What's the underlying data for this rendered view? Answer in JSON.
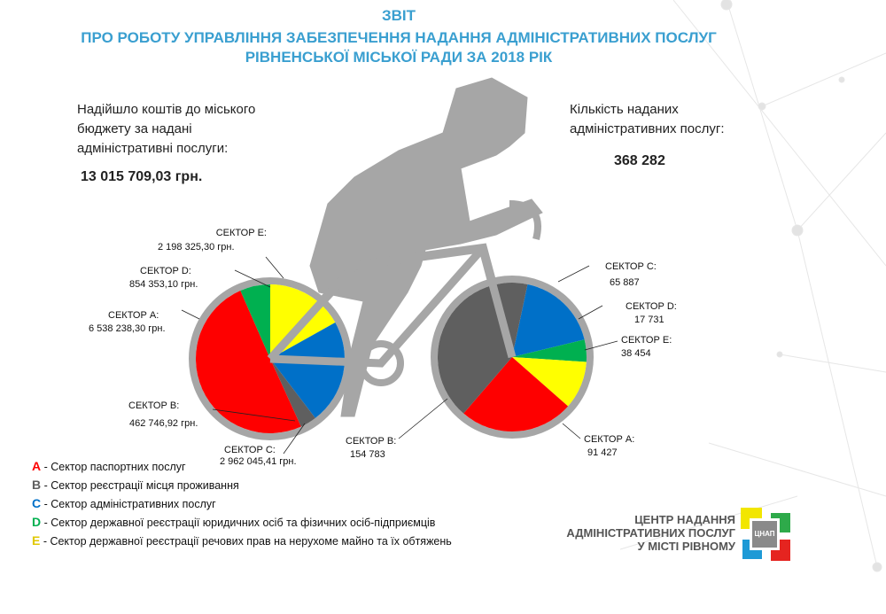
{
  "header": {
    "line1": "ЗВІТ",
    "line2": "ПРО РОБОТУ УПРАВЛІННЯ ЗАБЕЗПЕЧЕННЯ НАДАННЯ АДМІНІСТРАТИВНИХ ПОСЛУГ",
    "line3": "РІВНЕНСЬКОЇ МІСЬКОЇ РАДИ ЗА  2018 РІК"
  },
  "budget": {
    "line1": "Надійшло коштів до міського",
    "line2": "бюджету за надані",
    "line3": "адміністративні послуги:",
    "total": "13 015 709,03 грн."
  },
  "services": {
    "line1": "Кількість наданих",
    "line2": "адміністративних послуг:",
    "total": "368 282"
  },
  "colors": {
    "A": "#fe0000",
    "B": "#5f5f5f",
    "C": "#0070c8",
    "D": "#00b050",
    "E": "#ffff00",
    "title": "#3a9fd0",
    "bike": "#a6a6a6"
  },
  "chart_data": [
    {
      "type": "pie",
      "unit": "грн.",
      "categories": [
        "A",
        "B",
        "C",
        "D",
        "E"
      ],
      "labels": [
        "СЕКТОР A:",
        "СЕКТОР B:",
        "СЕКТОР C:",
        "СЕКТОР D:",
        "СЕКТОР E:"
      ],
      "values": [
        6538238.3,
        462746.92,
        2962045.41,
        854353.1,
        2198325.3
      ],
      "value_labels": [
        "6 538 238,30 грн.",
        "462 746,92 грн.",
        "2 962 045,41 грн.",
        "854 353,10 грн.",
        "2 198 325,30 грн."
      ]
    },
    {
      "type": "pie",
      "categories": [
        "A",
        "B",
        "C",
        "D",
        "E"
      ],
      "labels": [
        "СЕКТОР A:",
        "СЕКТОР B:",
        "СЕКТОР C:",
        "СЕКТОР D:",
        "СЕКТОР E:"
      ],
      "values": [
        91427,
        154783,
        65887,
        17731,
        38454
      ],
      "value_labels": [
        "91 427",
        "154 783",
        "65 887",
        "17 731",
        "38 454"
      ]
    }
  ],
  "legend": [
    {
      "letter": "A",
      "text": " - Сектор паспортних послуг"
    },
    {
      "letter": "B",
      "text": " - Сектор реєстрації місця проживання"
    },
    {
      "letter": "C",
      "text": " - Сектор адміністративних послуг"
    },
    {
      "letter": "D",
      "text": " - Сектор державної реєстрації юридичних осіб та фізичних осіб-підприємців"
    },
    {
      "letter": "E",
      "text": " - Сектор державної реєстрації речових прав на нерухоме майно та їх обтяжень"
    }
  ],
  "logo": {
    "line1": "ЦЕНТР НАДАННЯ",
    "line2": "АДМІНІСТРАТИВНИХ ПОСЛУГ",
    "line3": "У МІСТІ РІВНОМУ",
    "badge": "ЦНАП"
  }
}
